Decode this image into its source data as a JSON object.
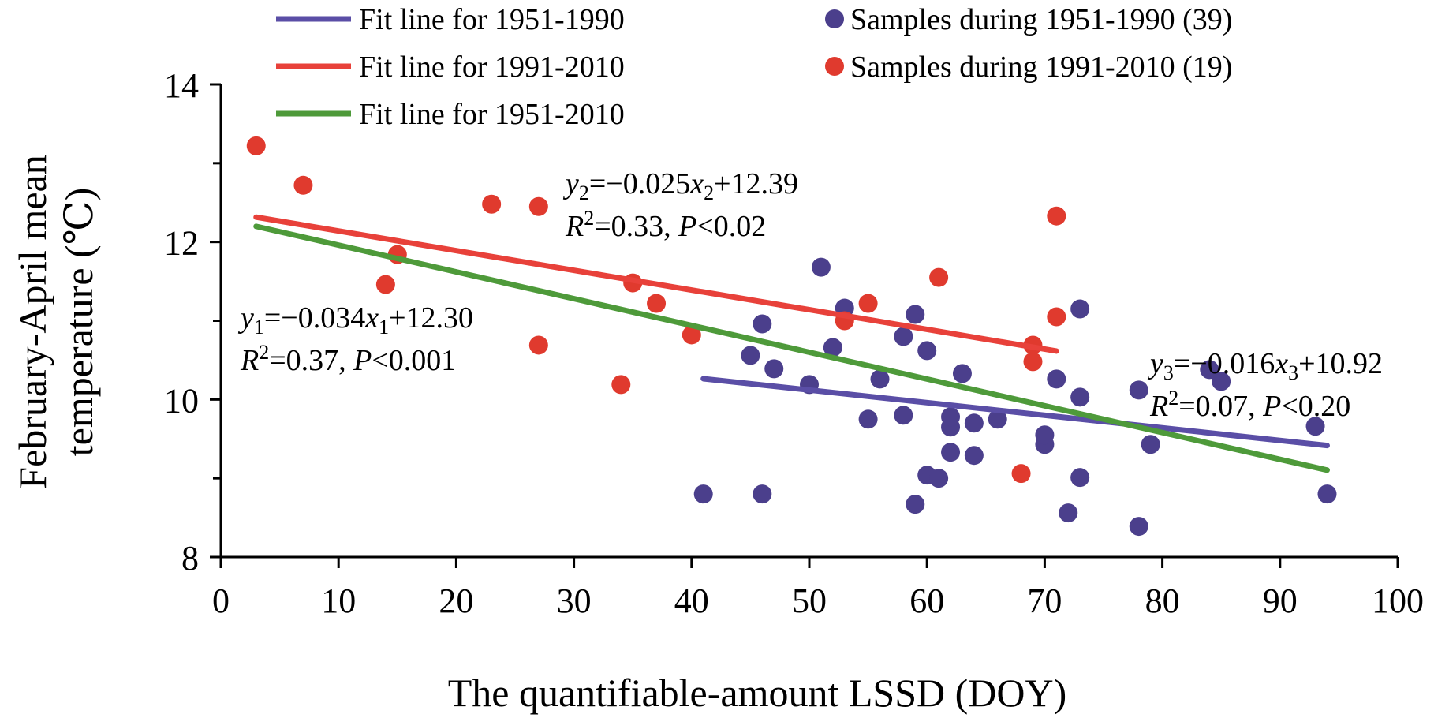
{
  "chart_data": {
    "type": "scatter",
    "xlabel": "The quantifiable-amount LSSD (DOY)",
    "ylabel_line1": "February-April mean",
    "ylabel_line2": "temperature (℃)",
    "xlim": [
      0,
      100
    ],
    "ylim": [
      8,
      14
    ],
    "xticks": [
      0,
      10,
      20,
      30,
      40,
      50,
      60,
      70,
      80,
      90,
      100
    ],
    "yticks": [
      8,
      10,
      12,
      14
    ],
    "grid": false,
    "legend_position": "top",
    "series": [
      {
        "name": "Samples during 1951-1990 (39)",
        "kind": "scatter",
        "color": "#4b3f8c",
        "points": [
          [
            41,
            8.8
          ],
          [
            45,
            10.56
          ],
          [
            46,
            8.8
          ],
          [
            46,
            10.96
          ],
          [
            47,
            10.39
          ],
          [
            50,
            10.19
          ],
          [
            51,
            11.68
          ],
          [
            52,
            10.66
          ],
          [
            53,
            11.16
          ],
          [
            55,
            9.75
          ],
          [
            56,
            10.26
          ],
          [
            58,
            9.8
          ],
          [
            58,
            10.8
          ],
          [
            59,
            8.67
          ],
          [
            59,
            11.08
          ],
          [
            60,
            10.62
          ],
          [
            60,
            9.04
          ],
          [
            61,
            9.0
          ],
          [
            62,
            9.33
          ],
          [
            62,
            9.65
          ],
          [
            62,
            9.78
          ],
          [
            63,
            10.33
          ],
          [
            64,
            9.29
          ],
          [
            64,
            9.7
          ],
          [
            66,
            9.75
          ],
          [
            70,
            9.43
          ],
          [
            70,
            9.55
          ],
          [
            71,
            10.26
          ],
          [
            72,
            8.56
          ],
          [
            73,
            9.01
          ],
          [
            73,
            10.03
          ],
          [
            73,
            11.15
          ],
          [
            78,
            8.39
          ],
          [
            78,
            10.12
          ],
          [
            79,
            9.43
          ],
          [
            84,
            10.38
          ],
          [
            85,
            10.23
          ],
          [
            93,
            9.66
          ],
          [
            94,
            8.8
          ]
        ]
      },
      {
        "name": "Samples during 1991-2010 (19)",
        "kind": "scatter",
        "color": "#e03a2e",
        "points": [
          [
            3,
            13.22
          ],
          [
            7,
            12.72
          ],
          [
            14,
            11.46
          ],
          [
            15,
            11.84
          ],
          [
            23,
            12.48
          ],
          [
            27,
            12.45
          ],
          [
            27,
            10.69
          ],
          [
            34,
            10.19
          ],
          [
            35,
            11.48
          ],
          [
            37,
            11.22
          ],
          [
            40,
            10.82
          ],
          [
            53,
            11.0
          ],
          [
            55,
            11.22
          ],
          [
            61,
            11.55
          ],
          [
            68,
            9.06
          ],
          [
            69,
            10.48
          ],
          [
            69,
            10.69
          ],
          [
            71,
            12.33
          ],
          [
            71,
            11.05
          ]
        ]
      },
      {
        "name": "Fit line for 1951-1990",
        "kind": "line",
        "color": "#5a4ea6",
        "x_range": [
          41,
          94
        ],
        "slope": -0.016,
        "intercept": 10.92
      },
      {
        "name": "Fit line for 1991-2010",
        "kind": "line",
        "color": "#e8413a",
        "x_range": [
          3,
          71
        ],
        "slope": -0.025,
        "intercept": 12.39
      },
      {
        "name": "Fit line for 1951-2010",
        "kind": "line",
        "color": "#4e9a3a",
        "x_range": [
          3,
          94
        ],
        "slope": -0.034,
        "intercept": 12.3
      }
    ],
    "annotations": {
      "eq2": {
        "var": "y",
        "sub": "2",
        "mid": "=−0.025",
        "xvar": "x",
        "xsub": "2",
        "tail": "+12.39",
        "r_line": {
          "r": "R",
          "sup": "2",
          "rest": "=0.33, ",
          "p": "P",
          "ptail": "<0.02"
        }
      },
      "eq1": {
        "var": "y",
        "sub": "1",
        "mid": "=−0.034",
        "xvar": "x",
        "xsub": "1",
        "tail": "+12.30",
        "r_line": {
          "r": "R",
          "sup": "2",
          "rest": "=0.37, ",
          "p": "P",
          "ptail": "<0.001"
        }
      },
      "eq3": {
        "var": "y",
        "sub": "3",
        "mid": "=−0.016",
        "xvar": "x",
        "xsub": "3",
        "tail": "+10.92",
        "r_line": {
          "r": "R",
          "sup": "2",
          "rest": "=0.07, ",
          "p": "P",
          "ptail": "<0.20"
        }
      }
    }
  }
}
